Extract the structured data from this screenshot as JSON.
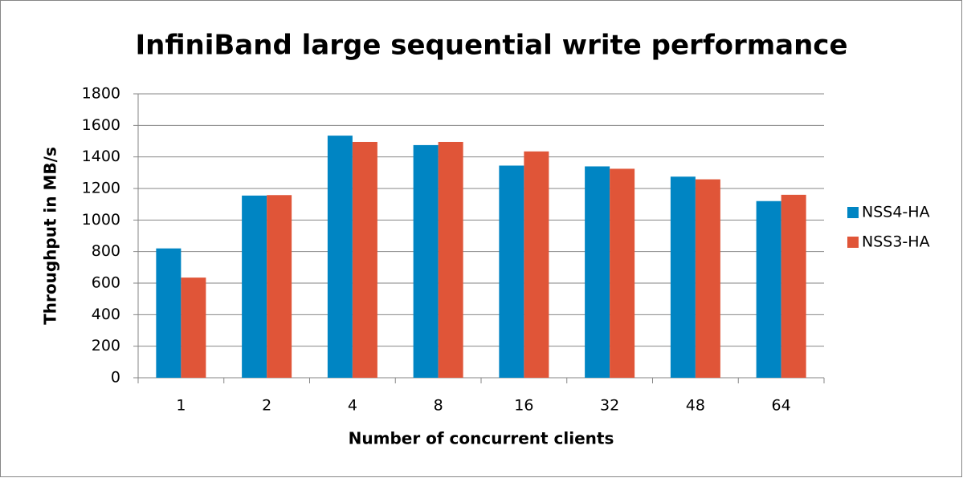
{
  "chart_data": {
    "type": "bar",
    "title": "InfiniBand large sequential write performance",
    "x_label": "Number of concurrent clients",
    "y_label": "Throughput in MB/s",
    "categories": [
      "1",
      "2",
      "4",
      "8",
      "16",
      "32",
      "48",
      "64"
    ],
    "series": [
      {
        "name": "NSS4-HA",
        "color": "#0085c3",
        "values": [
          820,
          1155,
          1535,
          1475,
          1345,
          1340,
          1275,
          1120
        ]
      },
      {
        "name": "NSS3-HA",
        "color": "#e05538",
        "values": [
          635,
          1158,
          1495,
          1495,
          1435,
          1325,
          1258,
          1160
        ]
      }
    ],
    "ylim": [
      0,
      1800
    ],
    "yticks": [
      0,
      200,
      400,
      600,
      800,
      1000,
      1200,
      1400,
      1600,
      1800
    ],
    "grid": true,
    "legend": "right"
  }
}
